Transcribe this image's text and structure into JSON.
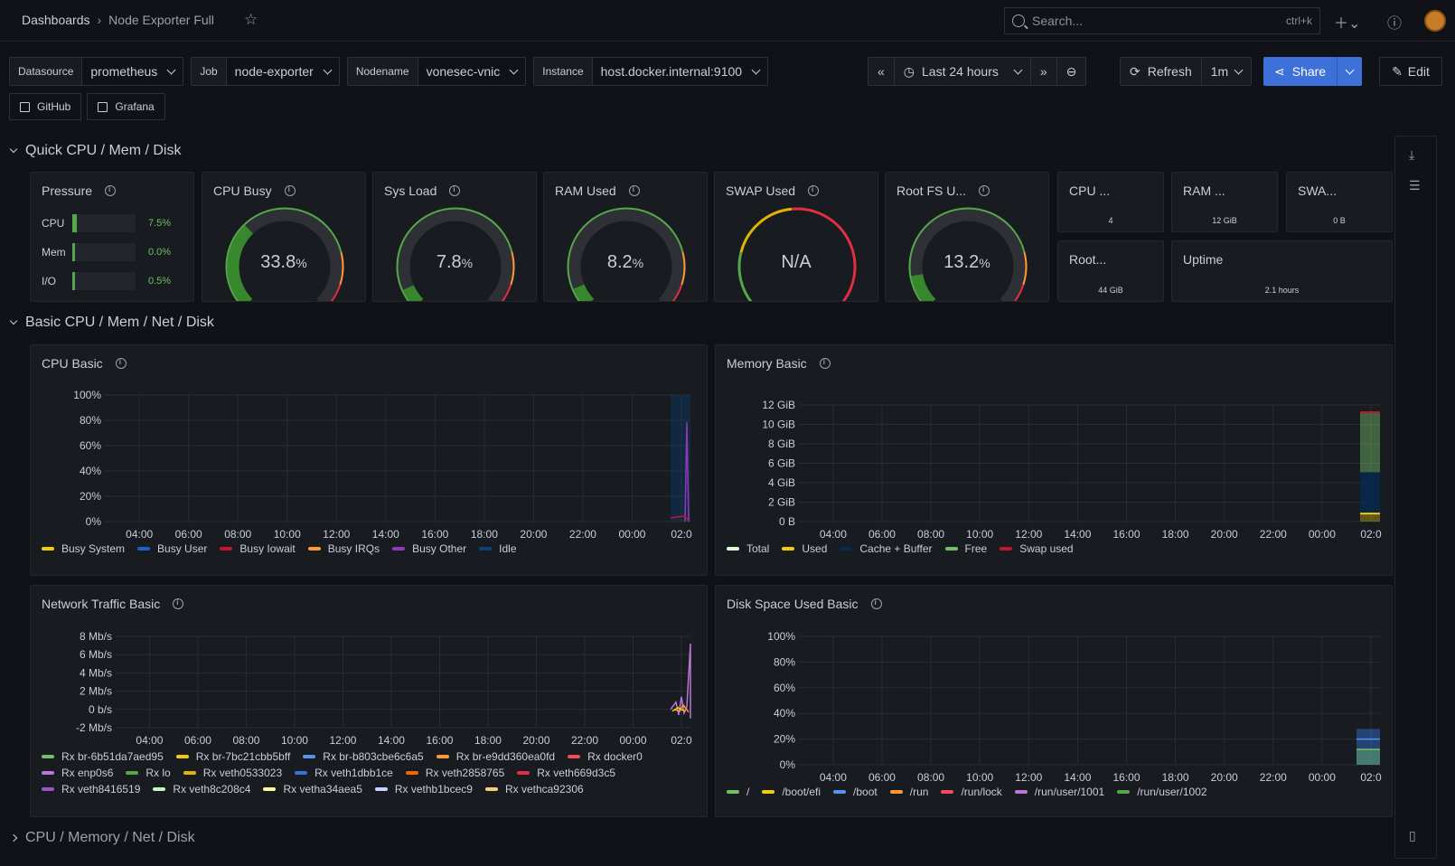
{
  "topbar": {
    "breadcrumb_root": "Dashboards",
    "breadcrumb_current": "Node Exporter Full",
    "search_placeholder": "Search...",
    "search_shortcut": "ctrl+k"
  },
  "variables": [
    {
      "label": "Datasource",
      "value": "prometheus"
    },
    {
      "label": "Job",
      "value": "node-exporter"
    },
    {
      "label": "Nodename",
      "value": "vonesec-vnic"
    },
    {
      "label": "Instance",
      "value": "host.docker.internal:9100"
    }
  ],
  "links": [
    {
      "label": "GitHub"
    },
    {
      "label": "Grafana"
    }
  ],
  "toolbar": {
    "time_range": "Last 24 hours",
    "refresh_label": "Refresh",
    "refresh_interval": "1m",
    "share_label": "Share",
    "edit_label": "Edit"
  },
  "rows": {
    "quick": "Quick CPU / Mem / Disk",
    "basic": "Basic CPU / Mem / Net / Disk",
    "full": "CPU / Memory / Net / Disk"
  },
  "pressure": {
    "title": "Pressure",
    "items": [
      {
        "label": "CPU",
        "value": "7.5%",
        "fraction": 0.075
      },
      {
        "label": "Mem",
        "value": "0.0%",
        "fraction": 0.0
      },
      {
        "label": "I/O",
        "value": "0.5%",
        "fraction": 0.005
      }
    ]
  },
  "gauges": [
    {
      "title": "CPU Busy",
      "value": "33.8",
      "unit": "%",
      "fraction": 0.338
    },
    {
      "title": "Sys Load",
      "value": "7.8",
      "unit": "%",
      "fraction": 0.078
    },
    {
      "title": "RAM Used",
      "value": "8.2",
      "unit": "%",
      "fraction": 0.082
    },
    {
      "title": "SWAP Used",
      "value": "N/A",
      "unit": "",
      "fraction": 0
    },
    {
      "title": "Root FS U...",
      "value": "13.2",
      "unit": "%",
      "fraction": 0.132
    }
  ],
  "stats": [
    {
      "title": "CPU ...",
      "value": "4"
    },
    {
      "title": "RAM ...",
      "value": "12 GiB"
    },
    {
      "title": "SWA...",
      "value": "0 B"
    },
    {
      "title": "Root...",
      "value": "44 GiB"
    },
    {
      "title": "Uptime",
      "value": "2.1 hours"
    }
  ],
  "colors": {
    "green": "#56a64b",
    "yellow": "#f2cc0c",
    "orange": "#ff9830",
    "red": "#e02f44",
    "blue": "#3274d9",
    "purple": "#a352cc"
  },
  "chart_data": [
    {
      "type": "area",
      "title": "CPU Basic",
      "x": [
        "04:00",
        "06:00",
        "08:00",
        "10:00",
        "12:00",
        "14:00",
        "16:00",
        "18:00",
        "20:00",
        "22:00",
        "00:00",
        "02:0"
      ],
      "y_ticks": [
        "100%",
        "80%",
        "60%",
        "40%",
        "20%",
        "0%"
      ],
      "ylim": [
        0,
        100
      ],
      "series": [
        {
          "name": "Busy System",
          "color": "#f2cc0c"
        },
        {
          "name": "Busy User",
          "color": "#1f60c4"
        },
        {
          "name": "Busy Iowait",
          "color": "#c4162a"
        },
        {
          "name": "Busy IRQs",
          "color": "#ff9830"
        },
        {
          "name": "Busy Other",
          "color": "#8f3bb8"
        },
        {
          "name": "Idle",
          "color": "#0a437c"
        }
      ]
    },
    {
      "type": "area",
      "title": "Memory Basic",
      "x": [
        "04:00",
        "06:00",
        "08:00",
        "10:00",
        "12:00",
        "14:00",
        "16:00",
        "18:00",
        "20:00",
        "22:00",
        "00:00",
        "02:0"
      ],
      "y_ticks": [
        "12 GiB",
        "10 GiB",
        "8 GiB",
        "6 GiB",
        "4 GiB",
        "2 GiB",
        "0 B"
      ],
      "ylim": [
        0,
        13
      ],
      "series": [
        {
          "name": "Total",
          "color": "#e0f9d7"
        },
        {
          "name": "Used",
          "color": "#f2cc0c"
        },
        {
          "name": "Cache + Buffer",
          "color": "#052b51"
        },
        {
          "name": "Free",
          "color": "#73bf69"
        },
        {
          "name": "Swap used",
          "color": "#c4162a"
        }
      ]
    },
    {
      "type": "line",
      "title": "Network Traffic Basic",
      "x": [
        "04:00",
        "06:00",
        "08:00",
        "10:00",
        "12:00",
        "14:00",
        "16:00",
        "18:00",
        "20:00",
        "22:00",
        "00:00",
        "02:0"
      ],
      "y_ticks": [
        "8 Mb/s",
        "6 Mb/s",
        "4 Mb/s",
        "2 Mb/s",
        "0 b/s",
        "-2 Mb/s"
      ],
      "ylim": [
        -2,
        8
      ],
      "series": [
        {
          "name": "Rx br-6b51da7aed95",
          "color": "#73bf69"
        },
        {
          "name": "Rx br-7bc21cbb5bff",
          "color": "#f2cc0c"
        },
        {
          "name": "Rx br-b803cbe6c6a5",
          "color": "#5794f2"
        },
        {
          "name": "Rx br-e9dd360ea0fd",
          "color": "#ff9830"
        },
        {
          "name": "Rx docker0",
          "color": "#f2495c"
        },
        {
          "name": "Rx enp0s6",
          "color": "#b877d9"
        },
        {
          "name": "Rx lo",
          "color": "#56a64b"
        },
        {
          "name": "Rx veth0533023",
          "color": "#e0b400"
        },
        {
          "name": "Rx veth1dbb1ce",
          "color": "#3274d9"
        },
        {
          "name": "Rx veth2858765",
          "color": "#fa6400"
        },
        {
          "name": "Rx veth669d3c5",
          "color": "#e02f44"
        },
        {
          "name": "Rx veth8416519",
          "color": "#a352cc"
        },
        {
          "name": "Rx veth8c208c4",
          "color": "#c8f2c2"
        },
        {
          "name": "Rx vetha34aea5",
          "color": "#fff899"
        },
        {
          "name": "Rx vethb1bcec9",
          "color": "#c0d8ff"
        },
        {
          "name": "Rx vethca92306",
          "color": "#ffcb7d"
        }
      ]
    },
    {
      "type": "area",
      "title": "Disk Space Used Basic",
      "x": [
        "04:00",
        "06:00",
        "08:00",
        "10:00",
        "12:00",
        "14:00",
        "16:00",
        "18:00",
        "20:00",
        "22:00",
        "00:00",
        "02:0"
      ],
      "y_ticks": [
        "100%",
        "80%",
        "60%",
        "40%",
        "20%",
        "0%"
      ],
      "ylim": [
        0,
        100
      ],
      "series": [
        {
          "name": "/",
          "color": "#73bf69"
        },
        {
          "name": "/boot/efi",
          "color": "#f2cc0c"
        },
        {
          "name": "/boot",
          "color": "#5794f2"
        },
        {
          "name": "/run",
          "color": "#ff9830"
        },
        {
          "name": "/run/lock",
          "color": "#f2495c"
        },
        {
          "name": "/run/user/1001",
          "color": "#b877d9"
        },
        {
          "name": "/run/user/1002",
          "color": "#56a64b"
        }
      ]
    }
  ]
}
